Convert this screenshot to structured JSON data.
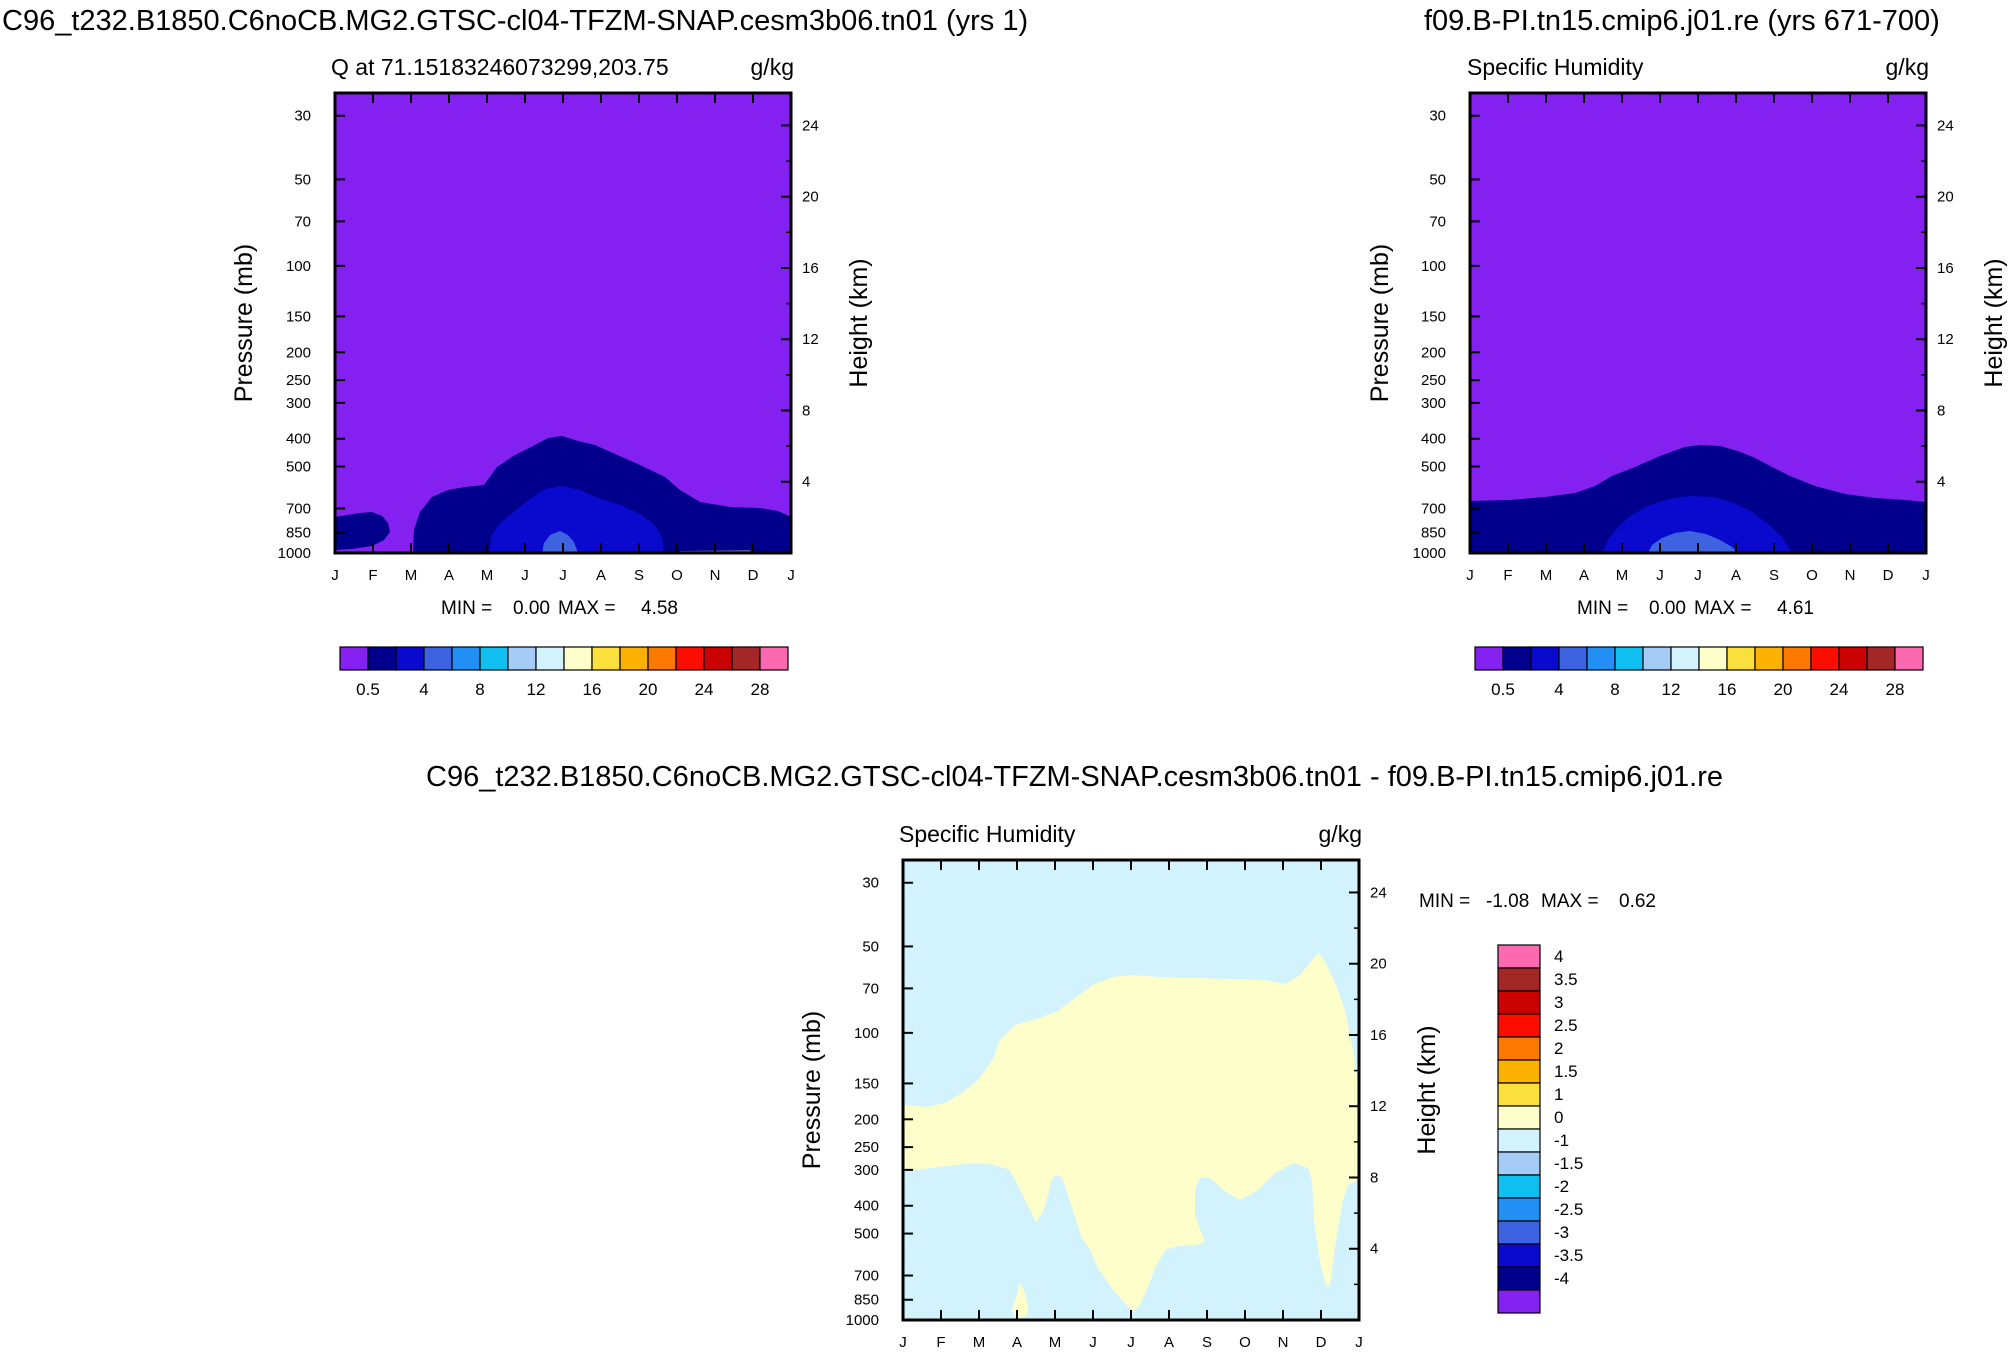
{
  "titles": {
    "left": "C96_t232.B1850.C6noCB.MG2.GTSC-cl04-TFZM-SNAP.cesm3b06.tn01 (yrs 1)",
    "right": "f09.B-PI.tn15.cmip6.j01.re (yrs 671-700)",
    "diff": "C96_t232.B1850.C6noCB.MG2.GTSC-cl04-TFZM-SNAP.cesm3b06.tn01 - f09.B-PI.tn15.cmip6.j01.re"
  },
  "chart_data": [
    {
      "id": "left",
      "type": "heatmap",
      "subtitle": "Q at 71.15183246073299,203.75",
      "units": "g/kg",
      "ylabel": "Pressure (mb)",
      "y2label": "Height (km)",
      "xticks": [
        "J",
        "F",
        "M",
        "A",
        "M",
        "J",
        "J",
        "A",
        "S",
        "O",
        "N",
        "D",
        "J"
      ],
      "pressure_ticks": [
        30,
        50,
        70,
        100,
        150,
        200,
        250,
        300,
        400,
        500,
        700,
        850,
        1000
      ],
      "height_ticks": [
        4,
        8,
        12,
        16,
        20,
        24
      ],
      "min_label": "MIN =",
      "min": "0.00",
      "max_label": "MAX =",
      "max": "4.58",
      "colorbar": {
        "orientation": "horizontal",
        "labels": [
          "0.5",
          "4",
          "8",
          "12",
          "16",
          "20",
          "24",
          "28"
        ],
        "colors": [
          "#8421F0",
          "#00008C",
          "#0A0ACF",
          "#3E63E0",
          "#228FF5",
          "#0EBFEF",
          "#A5CCF6",
          "#D2F3FE",
          "#FEFECA",
          "#FBE03E",
          "#FBB100",
          "#FC7900",
          "#FB0D00",
          "#CB0202",
          "#A42727",
          "#FB6AB0"
        ]
      }
    },
    {
      "id": "right",
      "type": "heatmap",
      "subtitle": "Specific Humidity",
      "units": "g/kg",
      "ylabel": "Pressure (mb)",
      "y2label": "Height (km)",
      "xticks": [
        "J",
        "F",
        "M",
        "A",
        "M",
        "J",
        "J",
        "A",
        "S",
        "O",
        "N",
        "D",
        "J"
      ],
      "pressure_ticks": [
        30,
        50,
        70,
        100,
        150,
        200,
        250,
        300,
        400,
        500,
        700,
        850,
        1000
      ],
      "height_ticks": [
        4,
        8,
        12,
        16,
        20,
        24
      ],
      "min_label": "MIN =",
      "min": "0.00",
      "max_label": "MAX =",
      "max": "4.61",
      "colorbar": {
        "orientation": "horizontal",
        "labels": [
          "0.5",
          "4",
          "8",
          "12",
          "16",
          "20",
          "24",
          "28"
        ],
        "colors": [
          "#8421F0",
          "#00008C",
          "#0A0ACF",
          "#3E63E0",
          "#228FF5",
          "#0EBFEF",
          "#A5CCF6",
          "#D2F3FE",
          "#FEFECA",
          "#FBE03E",
          "#FBB100",
          "#FC7900",
          "#FB0D00",
          "#CB0202",
          "#A42727",
          "#FB6AB0"
        ]
      }
    },
    {
      "id": "diff",
      "type": "heatmap",
      "subtitle": "Specific Humidity",
      "units": "g/kg",
      "ylabel": "Pressure (mb)",
      "y2label": "Height (km)",
      "xticks": [
        "J",
        "F",
        "M",
        "A",
        "M",
        "J",
        "J",
        "A",
        "S",
        "O",
        "N",
        "D",
        "J"
      ],
      "pressure_ticks": [
        30,
        50,
        70,
        100,
        150,
        200,
        250,
        300,
        400,
        500,
        700,
        850,
        1000
      ],
      "height_ticks": [
        4,
        8,
        12,
        16,
        20,
        24
      ],
      "min_label": "MIN =",
      "min": "-1.08",
      "max_label": "MAX =",
      "max": "0.62",
      "colorbar": {
        "orientation": "vertical",
        "labels": [
          "4",
          "3.5",
          "3",
          "2.5",
          "2",
          "1.5",
          "1",
          "0",
          "-1",
          "-1.5",
          "-2",
          "-2.5",
          "-3",
          "-3.5",
          "-4"
        ],
        "colors": [
          "#FB6AB0",
          "#A42727",
          "#CB0202",
          "#FB0D00",
          "#FC7900",
          "#FBB100",
          "#FBE03E",
          "#FEFECA",
          "#D2F3FE",
          "#A5CCF6",
          "#0EBFEF",
          "#228FF5",
          "#3E63E0",
          "#0A0ACF",
          "#00008C",
          "#8421F0"
        ]
      }
    }
  ]
}
